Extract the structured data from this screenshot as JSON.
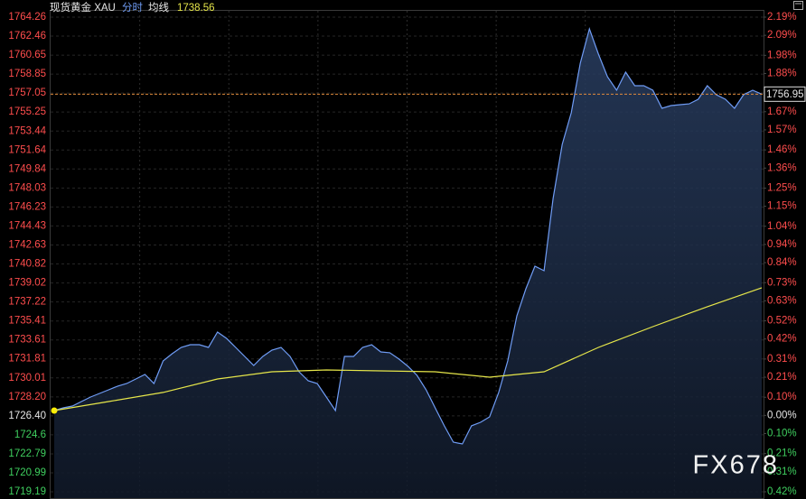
{
  "chart_data": {
    "type": "line",
    "title": "现货黄金 XAU",
    "mode_label": "分时",
    "average_label": "均线",
    "average_value": "1738.56",
    "watermark": "FX678",
    "ylim": [
      1719.19,
      1764.26
    ],
    "yticks": [
      1764.26,
      1762.46,
      1760.65,
      1758.85,
      1757.05,
      1755.25,
      1753.44,
      1751.64,
      1749.84,
      1748.03,
      1746.23,
      1744.43,
      1742.63,
      1740.82,
      1739.02,
      1737.22,
      1735.41,
      1733.61,
      1731.81,
      1730.01,
      {
        "value": 1728.2,
        "label": "1728.20"
      },
      {
        "value": 1726.4,
        "label": "1726.40"
      },
      1724.6,
      1722.79,
      1720.99,
      1719.19
    ],
    "y2lim": [
      -0.42,
      2.19
    ],
    "y2ticks": [
      {
        "value": 2.19,
        "label": "2.19%"
      },
      {
        "value": 2.09,
        "label": "2.09%"
      },
      {
        "value": 1.98,
        "label": "1.98%"
      },
      {
        "value": 1.88,
        "label": "1.88%"
      },
      {
        "value": 1.78,
        "label": "1.78%"
      },
      {
        "value": 1.67,
        "label": "1.67%"
      },
      {
        "value": 1.57,
        "label": "1.57%"
      },
      {
        "value": 1.46,
        "label": "1.46%"
      },
      {
        "value": 1.36,
        "label": "1.36%"
      },
      {
        "value": 1.25,
        "label": "1.25%"
      },
      {
        "value": 1.15,
        "label": "1.15%"
      },
      {
        "value": 1.04,
        "label": "1.04%"
      },
      {
        "value": 0.94,
        "label": "0.94%"
      },
      {
        "value": 0.84,
        "label": "0.84%"
      },
      {
        "value": 0.73,
        "label": "0.73%"
      },
      {
        "value": 0.63,
        "label": "0.63%"
      },
      {
        "value": 0.52,
        "label": "0.52%"
      },
      {
        "value": 0.42,
        "label": "0.42%"
      },
      {
        "value": 0.31,
        "label": "0.31%"
      },
      {
        "value": 0.21,
        "label": "0.21%"
      },
      {
        "value": 0.1,
        "label": "0.10%"
      },
      {
        "value": 0,
        "label": "0.00%"
      },
      {
        "value": -0.1,
        "label": "0.10%"
      },
      {
        "value": -0.21,
        "label": "0.21%"
      },
      {
        "value": -0.31,
        "label": "0.31%"
      },
      {
        "value": -0.42,
        "label": "0.42%"
      }
    ],
    "up_color": "#ff4d4d",
    "down_color": "#3fcf5f",
    "flat_color": "#e6e6e6",
    "grid": true,
    "reference_line": {
      "value": 1756.95,
      "color": "#e08a3c"
    },
    "series": [
      {
        "name": "分时",
        "color": "#6f9cf5",
        "values": [
          1726.9,
          1727.16,
          1727.33,
          1727.76,
          1728.19,
          1728.53,
          1728.87,
          1729.22,
          1729.47,
          1729.9,
          1730.33,
          1729.47,
          1731.61,
          1732.3,
          1732.9,
          1733.16,
          1733.16,
          1732.9,
          1734.36,
          1733.76,
          1732.9,
          1732.04,
          1731.19,
          1732.04,
          1732.64,
          1732.9,
          1732.04,
          1730.59,
          1729.73,
          1729.47,
          1728.19,
          1726.9,
          1732.04,
          1732.04,
          1732.9,
          1733.16,
          1732.47,
          1732.39,
          1731.79,
          1731.1,
          1730.24,
          1728.87,
          1727.16,
          1725.45,
          1723.9,
          1723.73,
          1725.45,
          1725.79,
          1726.3,
          1728.62,
          1731.61,
          1735.9,
          1738.47,
          1740.61,
          1740.18,
          1747.04,
          1752.18,
          1755.18,
          1759.89,
          1763.15,
          1760.75,
          1758.6,
          1757.32,
          1759.03,
          1757.75,
          1757.75,
          1757.32,
          1755.61,
          1755.86,
          1755.95,
          1756.03,
          1756.46,
          1757.75,
          1756.89,
          1756.46,
          1755.61,
          1756.89,
          1757.32,
          1756.95
        ]
      },
      {
        "name": "均线",
        "color": "#e6e64a",
        "values": [
          1726.9,
          1727.76,
          1728.62,
          1729.9,
          1730.59,
          1730.76,
          1730.67,
          1730.59,
          1730.07,
          1730.59,
          1732.9,
          1734.87,
          1736.76,
          1738.56
        ]
      }
    ]
  }
}
